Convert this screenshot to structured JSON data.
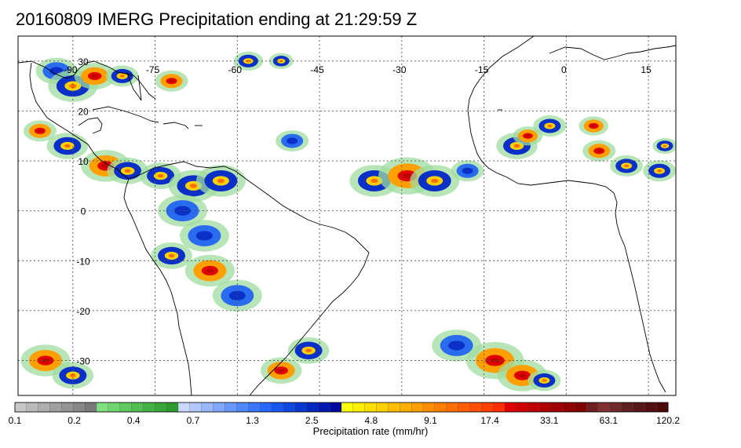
{
  "title": "20160809 IMERG Precipitation ending at 21:29:59 Z",
  "colors": {
    "land_outline": "#000000",
    "grid": "#555555",
    "frame": "#000000"
  },
  "map": {
    "lon_labels": [
      "-90",
      "-75",
      "-60",
      "-45",
      "-30",
      "-15",
      "0",
      "15"
    ],
    "lat_labels": [
      "30",
      "20",
      "10",
      "0",
      "-10",
      "-20",
      "-30"
    ]
  },
  "colorbar": {
    "label": "Precipitation rate (mm/hr)",
    "ticks": [
      "0.1",
      "0.2",
      "0.4",
      "0.7",
      "1.3",
      "2.5",
      "4.8",
      "9.1",
      "17.4",
      "33.1",
      "63.1",
      "120.2"
    ],
    "colors": [
      "#c8c8c8",
      "#bababa",
      "#adadad",
      "#a0a0a0",
      "#939393",
      "#878787",
      "#7a7a7a",
      "#7fe07f",
      "#6fd56f",
      "#60c960",
      "#52be52",
      "#45b245",
      "#38a638",
      "#2c9a2c",
      "#c8d8ff",
      "#b2c8ff",
      "#99b8ff",
      "#80a8ff",
      "#6898ff",
      "#5088ff",
      "#3a78ff",
      "#2868ff",
      "#1858f0",
      "#1048e0",
      "#0838d0",
      "#0028c0",
      "#0018b0",
      "#0008a0",
      "#ffff00",
      "#ffef00",
      "#ffdf00",
      "#ffcf00",
      "#ffbf00",
      "#ffaf00",
      "#ff9f00",
      "#ff8f00",
      "#ff7f00",
      "#ff6f00",
      "#ff5f00",
      "#ff4f00",
      "#ff3f00",
      "#ff2f00",
      "#e00000",
      "#d00000",
      "#c00000",
      "#b00000",
      "#a00000",
      "#900000",
      "#800000",
      "#702020",
      "#803030",
      "#702828",
      "#602020",
      "#5a1818",
      "#541010",
      "#4e0808"
    ]
  },
  "precip": [
    {
      "lon": -93,
      "lat": 28,
      "r": 2.5,
      "level": 2
    },
    {
      "lon": -90,
      "lat": 25,
      "r": 3,
      "level": 3
    },
    {
      "lon": -86,
      "lat": 27,
      "r": 2.5,
      "level": 4
    },
    {
      "lon": -81,
      "lat": 27,
      "r": 2,
      "level": 3
    },
    {
      "lon": -72,
      "lat": 26,
      "r": 2,
      "level": 4
    },
    {
      "lon": -58,
      "lat": 30,
      "r": 1.8,
      "level": 3
    },
    {
      "lon": -52,
      "lat": 30,
      "r": 1.5,
      "level": 3
    },
    {
      "lon": -96,
      "lat": 16,
      "r": 2,
      "level": 4
    },
    {
      "lon": -91,
      "lat": 13,
      "r": 2.5,
      "level": 3
    },
    {
      "lon": -84,
      "lat": 9,
      "r": 3,
      "level": 4
    },
    {
      "lon": -80,
      "lat": 8,
      "r": 2.5,
      "level": 3
    },
    {
      "lon": -74,
      "lat": 7,
      "r": 2.5,
      "level": 3
    },
    {
      "lon": -68,
      "lat": 5,
      "r": 3,
      "level": 3
    },
    {
      "lon": -63,
      "lat": 6,
      "r": 3,
      "level": 3
    },
    {
      "lon": -70,
      "lat": 0,
      "r": 3,
      "level": 2
    },
    {
      "lon": -66,
      "lat": -5,
      "r": 3,
      "level": 2
    },
    {
      "lon": -72,
      "lat": -9,
      "r": 2.5,
      "level": 3
    },
    {
      "lon": -65,
      "lat": -12,
      "r": 3,
      "level": 4
    },
    {
      "lon": -60,
      "lat": -17,
      "r": 3,
      "level": 2
    },
    {
      "lon": -50,
      "lat": 14,
      "r": 2,
      "level": 2
    },
    {
      "lon": -35,
      "lat": 6,
      "r": 3,
      "level": 3
    },
    {
      "lon": -29,
      "lat": 7,
      "r": 3.5,
      "level": 4
    },
    {
      "lon": -24,
      "lat": 6,
      "r": 3,
      "level": 3
    },
    {
      "lon": -18,
      "lat": 8,
      "r": 2,
      "level": 2
    },
    {
      "lon": -9,
      "lat": 13,
      "r": 2.5,
      "level": 3
    },
    {
      "lon": -7,
      "lat": 15,
      "r": 1.8,
      "level": 4
    },
    {
      "lon": -3,
      "lat": 17,
      "r": 2,
      "level": 3
    },
    {
      "lon": 5,
      "lat": 17,
      "r": 1.8,
      "level": 4
    },
    {
      "lon": 6,
      "lat": 12,
      "r": 2,
      "level": 4
    },
    {
      "lon": 11,
      "lat": 9,
      "r": 2,
      "level": 3
    },
    {
      "lon": 17,
      "lat": 8,
      "r": 2,
      "level": 3
    },
    {
      "lon": 18,
      "lat": 13,
      "r": 1.5,
      "level": 3
    },
    {
      "lon": -95,
      "lat": -30,
      "r": 3,
      "level": 4
    },
    {
      "lon": -90,
      "lat": -33,
      "r": 2.5,
      "level": 3
    },
    {
      "lon": -47,
      "lat": -28,
      "r": 2.5,
      "level": 3
    },
    {
      "lon": -52,
      "lat": -32,
      "r": 2.5,
      "level": 4
    },
    {
      "lon": -20,
      "lat": -27,
      "r": 3,
      "level": 2
    },
    {
      "lon": -13,
      "lat": -30,
      "r": 3.5,
      "level": 4
    },
    {
      "lon": -8,
      "lat": -33,
      "r": 3,
      "level": 4
    },
    {
      "lon": -4,
      "lat": -34,
      "r": 2,
      "level": 3
    }
  ]
}
